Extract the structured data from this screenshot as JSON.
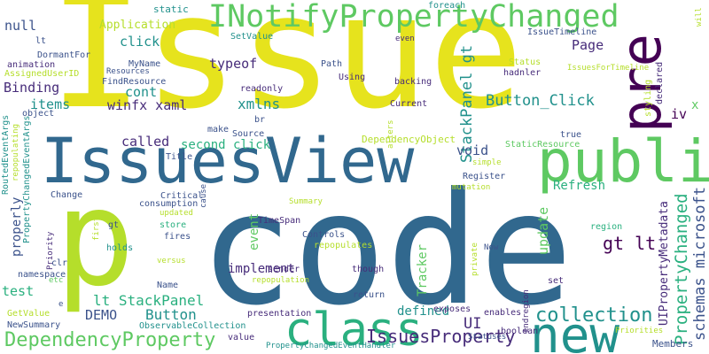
{
  "cloud": {
    "palette": {
      "yellow": "#e6e31d",
      "lime": "#b5de2b",
      "green": "#5ec962",
      "teal": "#21918c",
      "blue": "#3b528b",
      "steel": "#31688e",
      "purple": "#440154",
      "violet": "#472c7a",
      "aqua": "#2ab07f"
    },
    "words": [
      {
        "text": "Issue",
        "color": "yellow"
      },
      {
        "text": "code",
        "color": "steel"
      },
      {
        "text": "IssuesView",
        "color": "steel"
      },
      {
        "text": "pre",
        "color": "purple"
      },
      {
        "text": "public",
        "color": "green"
      },
      {
        "text": "p",
        "color": "lime"
      },
      {
        "text": "INotifyPropertyChanged",
        "color": "green"
      },
      {
        "text": "new",
        "color": "teal"
      },
      {
        "text": "class",
        "color": "aqua"
      },
      {
        "text": "DependencyProperty",
        "color": "green"
      },
      {
        "text": "collection",
        "color": "teal"
      },
      {
        "text": "IssuesProperty",
        "color": "violet"
      },
      {
        "text": "StackPanel gt",
        "color": "teal"
      },
      {
        "text": "Button_Click",
        "color": "teal"
      },
      {
        "text": "PropertyChanged",
        "color": "aqua"
      },
      {
        "text": "schemas microsoft",
        "color": "blue"
      },
      {
        "text": "gt lt",
        "color": "purple"
      },
      {
        "text": "Application",
        "color": "lime"
      },
      {
        "text": "Binding",
        "color": "violet"
      },
      {
        "text": "items",
        "color": "teal"
      },
      {
        "text": "winfx xaml",
        "color": "violet"
      },
      {
        "text": "xmlns",
        "color": "teal"
      },
      {
        "text": "null",
        "color": "blue"
      },
      {
        "text": "click",
        "color": "teal"
      },
      {
        "text": "typeof",
        "color": "violet"
      },
      {
        "text": "cont",
        "color": "teal"
      },
      {
        "text": "Page",
        "color": "violet"
      },
      {
        "text": "second click",
        "color": "aqua"
      },
      {
        "text": "called",
        "color": "violet"
      },
      {
        "text": "void",
        "color": "blue"
      },
      {
        "text": "Refresh",
        "color": "aqua"
      },
      {
        "text": "update",
        "color": "green"
      },
      {
        "text": "event",
        "color": "green"
      },
      {
        "text": "Tracker",
        "color": "green"
      },
      {
        "text": "implement",
        "color": "violet"
      },
      {
        "text": "lt StackPanel",
        "color": "aqua"
      },
      {
        "text": "Button",
        "color": "teal"
      },
      {
        "text": "DEMO",
        "color": "blue"
      },
      {
        "text": "defined",
        "color": "teal"
      },
      {
        "text": "UI",
        "color": "violet"
      },
      {
        "text": "properly",
        "color": "blue"
      },
      {
        "text": "test",
        "color": "aqua"
      },
      {
        "text": "iv",
        "color": "purple"
      },
      {
        "text": "x",
        "color": "green"
      },
      {
        "text": "UIPropertyMetadata",
        "color": "violet"
      },
      {
        "text": "Members",
        "color": "blue"
      },
      {
        "text": "static",
        "color": "teal"
      },
      {
        "text": "foreach",
        "color": "teal"
      },
      {
        "text": "will",
        "color": "lime"
      },
      {
        "text": "SetValue",
        "color": "teal"
      },
      {
        "text": "IssueTimeline",
        "color": "blue"
      },
      {
        "text": "lt",
        "color": "blue"
      },
      {
        "text": "even",
        "color": "violet"
      },
      {
        "text": "DormantFor",
        "color": "blue"
      },
      {
        "text": "MyName",
        "color": "blue"
      },
      {
        "text": "Resources",
        "color": "blue"
      },
      {
        "text": "animation",
        "color": "violet"
      },
      {
        "text": "AssignedUserID",
        "color": "lime"
      },
      {
        "text": "FindResource",
        "color": "blue"
      },
      {
        "text": "Path",
        "color": "blue"
      },
      {
        "text": "backing",
        "color": "violet"
      },
      {
        "text": "Using",
        "color": "violet"
      },
      {
        "text": "hadnler",
        "color": "violet"
      },
      {
        "text": "Status",
        "color": "lime"
      },
      {
        "text": "IssuesForTimeline",
        "color": "lime"
      },
      {
        "text": "declared",
        "color": "violet"
      },
      {
        "text": "styling",
        "color": "lime"
      },
      {
        "text": "readonly",
        "color": "violet"
      },
      {
        "text": "Current",
        "color": "violet"
      },
      {
        "text": "RoutedEventArgs",
        "color": "teal"
      },
      {
        "text": "PropertyChangedEventArgs",
        "color": "teal"
      },
      {
        "text": "repopulating",
        "color": "lime"
      },
      {
        "text": "object",
        "color": "blue"
      },
      {
        "text": "br",
        "color": "blue"
      },
      {
        "text": "make",
        "color": "blue"
      },
      {
        "text": "Source",
        "color": "blue"
      },
      {
        "text": "alters",
        "color": "lime"
      },
      {
        "text": "DependencyObject",
        "color": "lime"
      },
      {
        "text": "true",
        "color": "blue"
      },
      {
        "text": "StaticResource",
        "color": "green"
      },
      {
        "text": "Title",
        "color": "blue"
      },
      {
        "text": "Register",
        "color": "blue"
      },
      {
        "text": "simple",
        "color": "lime"
      },
      {
        "text": "mutation",
        "color": "lime"
      },
      {
        "text": "Change",
        "color": "blue"
      },
      {
        "text": "Critical",
        "color": "blue"
      },
      {
        "text": "cause",
        "color": "blue"
      },
      {
        "text": "consumption",
        "color": "blue"
      },
      {
        "text": "Summary",
        "color": "lime"
      },
      {
        "text": "updated",
        "color": "lime"
      },
      {
        "text": "TimeSpan",
        "color": "violet"
      },
      {
        "text": "region",
        "color": "aqua"
      },
      {
        "text": "gt",
        "color": "blue"
      },
      {
        "text": "store",
        "color": "aqua"
      },
      {
        "text": "fires",
        "color": "blue"
      },
      {
        "text": "Controls",
        "color": "blue"
      },
      {
        "text": "first",
        "color": "lime"
      },
      {
        "text": "Priority",
        "color": "violet"
      },
      {
        "text": "holds",
        "color": "teal"
      },
      {
        "text": "repopulates",
        "color": "lime"
      },
      {
        "text": "private",
        "color": "lime"
      },
      {
        "text": "Now",
        "color": "blue"
      },
      {
        "text": "clr",
        "color": "blue"
      },
      {
        "text": "namespace",
        "color": "blue"
      },
      {
        "text": "sender",
        "color": "violet"
      },
      {
        "text": "though",
        "color": "violet"
      },
      {
        "text": "versus",
        "color": "lime"
      },
      {
        "text": "repopulation",
        "color": "lime"
      },
      {
        "text": "etc",
        "color": "green"
      },
      {
        "text": "Name",
        "color": "blue"
      },
      {
        "text": "return",
        "color": "blue"
      },
      {
        "text": "set",
        "color": "violet"
      },
      {
        "text": "GetValue",
        "color": "lime"
      },
      {
        "text": "NewSummary",
        "color": "blue"
      },
      {
        "text": "e",
        "color": "blue"
      },
      {
        "text": "ObservableCollection",
        "color": "teal"
      },
      {
        "text": "presentation",
        "color": "violet"
      },
      {
        "text": "value",
        "color": "violet"
      },
      {
        "text": "exposes",
        "color": "violet"
      },
      {
        "text": "enables",
        "color": "violet"
      },
      {
        "text": "endregion",
        "color": "violet"
      },
      {
        "text": "Statuses",
        "color": "blue"
      },
      {
        "text": "boolean",
        "color": "violet"
      },
      {
        "text": "Priorities",
        "color": "lime"
      },
      {
        "text": "PropertyChangedEventHandler",
        "color": "teal"
      }
    ]
  }
}
